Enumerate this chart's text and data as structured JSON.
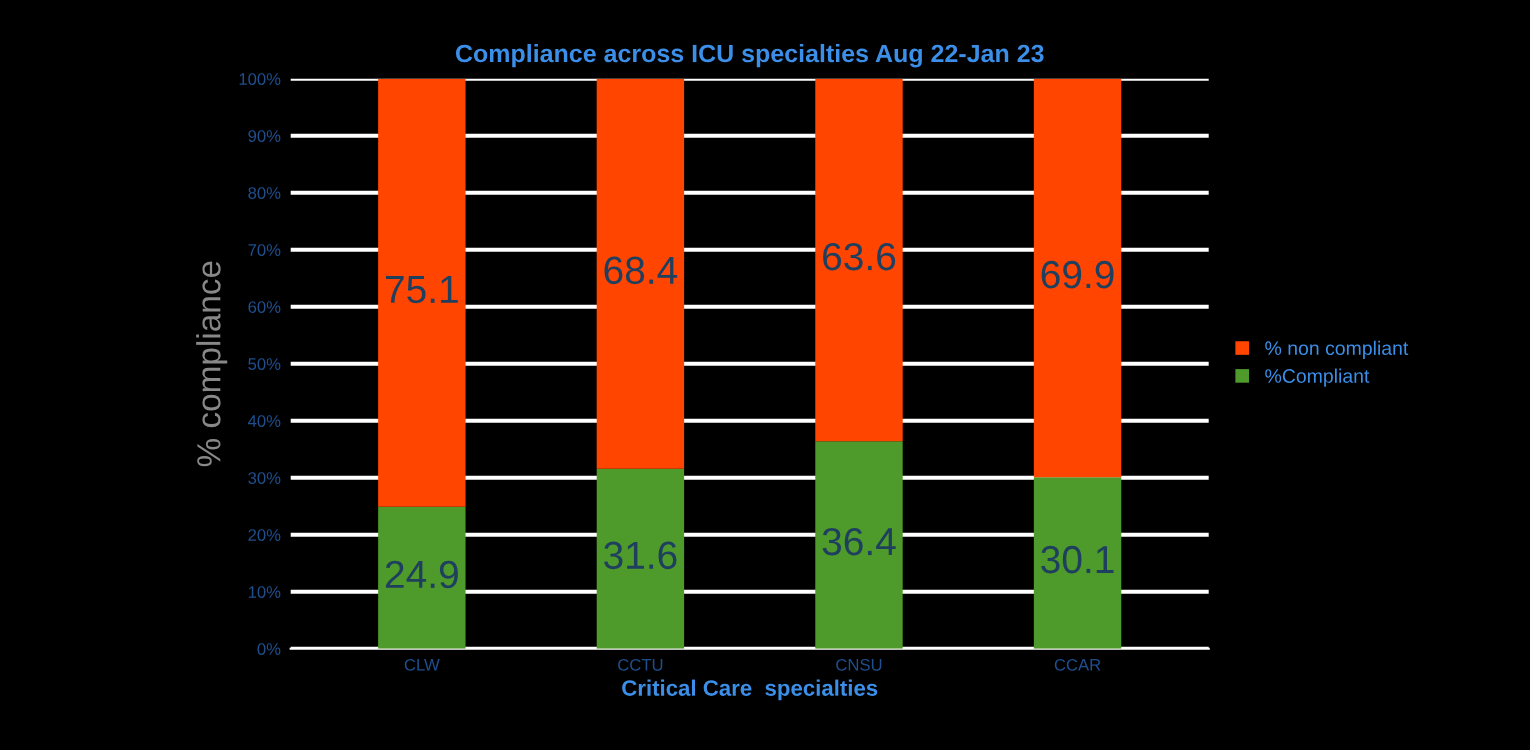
{
  "chart_data": {
    "type": "bar",
    "title": "Compliance across ICU specialties Aug 22-Jan 23",
    "xlabel": "Critical Care  specialties",
    "ylabel": "% compliance",
    "categories": [
      "CLW",
      "CCTU",
      "CNSU",
      "CCAR"
    ],
    "series": [
      {
        "name": "%Compliant",
        "color": "#4e9a2a",
        "values": [
          24.9,
          31.6,
          36.4,
          30.1
        ]
      },
      {
        "name": "% non compliant",
        "color": "#ff4500",
        "values": [
          75.1,
          68.4,
          63.6,
          69.9
        ]
      }
    ],
    "stacked": true,
    "data_labels": true,
    "ylim": [
      0,
      100
    ],
    "yticks": [
      {
        "value": 0,
        "label": "0%"
      },
      {
        "value": 10,
        "label": "10%"
      },
      {
        "value": 20,
        "label": "20%"
      },
      {
        "value": 30,
        "label": "30%"
      },
      {
        "value": 40,
        "label": "40%"
      },
      {
        "value": 50,
        "label": "50%"
      },
      {
        "value": 60,
        "label": "60%"
      },
      {
        "value": 70,
        "label": "70%"
      },
      {
        "value": 80,
        "label": "80%"
      },
      {
        "value": 90,
        "label": "90%"
      },
      {
        "value": 100,
        "label": "100%"
      }
    ],
    "grid": "y",
    "legend": "right"
  }
}
